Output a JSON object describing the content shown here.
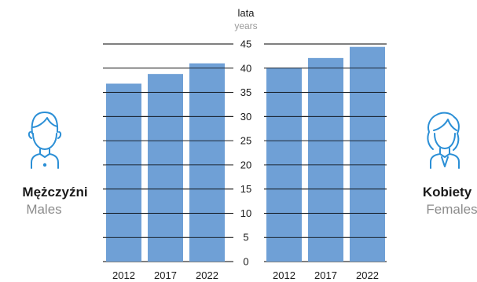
{
  "chart_data": [
    {
      "type": "bar",
      "group_label": "Mężczyźni",
      "group_label_en": "Males",
      "categories": [
        "2012",
        "2017",
        "2022"
      ],
      "values": [
        36.8,
        38.8,
        41.0
      ],
      "ylim": [
        0,
        45
      ]
    },
    {
      "type": "bar",
      "group_label": "Kobiety",
      "group_label_en": "Females",
      "categories": [
        "2012",
        "2017",
        "2022"
      ],
      "values": [
        40.1,
        42.1,
        44.4
      ],
      "ylim": [
        0,
        45
      ]
    }
  ],
  "axis": {
    "unit_label": "lata",
    "unit_label_en": "years",
    "ticks": [
      0,
      5,
      10,
      15,
      20,
      25,
      30,
      35,
      40,
      45
    ]
  },
  "colors": {
    "bar": "#6fa0d6",
    "grid": "#000000",
    "icon": "#2b8fd6"
  },
  "icons": {
    "males": "male-person-icon",
    "females": "female-person-icon"
  }
}
